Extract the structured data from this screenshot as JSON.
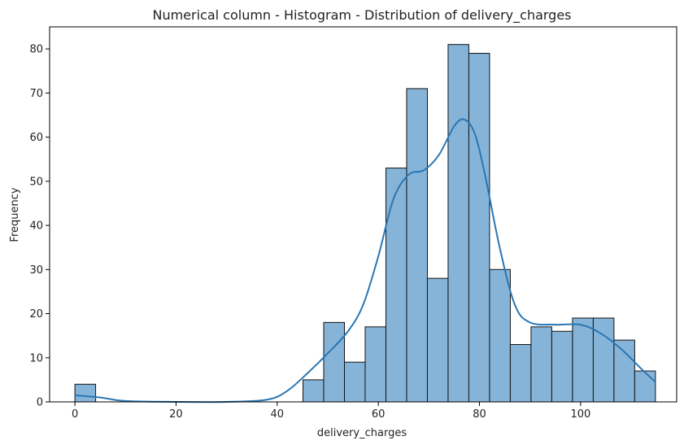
{
  "chart_data": {
    "type": "bar",
    "subtype": "histogram",
    "title": "Numerical column - Histogram - Distribution of delivery_charges",
    "xlabel": "delivery_charges",
    "ylabel": "Frequency",
    "xlim": [
      -5,
      119
    ],
    "ylim": [
      0,
      85
    ],
    "xticks": [
      0,
      20,
      40,
      60,
      80,
      100
    ],
    "yticks": [
      0,
      10,
      20,
      30,
      40,
      50,
      60,
      70,
      80
    ],
    "bin_width": 4.1,
    "bins": [
      {
        "start": 0.0,
        "end": 4.1,
        "count": 4
      },
      {
        "start": 45.1,
        "end": 49.2,
        "count": 5
      },
      {
        "start": 49.2,
        "end": 53.3,
        "count": 18
      },
      {
        "start": 53.3,
        "end": 57.4,
        "count": 9
      },
      {
        "start": 57.4,
        "end": 61.5,
        "count": 17
      },
      {
        "start": 61.5,
        "end": 65.6,
        "count": 53
      },
      {
        "start": 65.6,
        "end": 69.7,
        "count": 71
      },
      {
        "start": 69.7,
        "end": 73.8,
        "count": 28
      },
      {
        "start": 73.8,
        "end": 77.9,
        "count": 81
      },
      {
        "start": 77.9,
        "end": 82.0,
        "count": 79
      },
      {
        "start": 82.0,
        "end": 86.1,
        "count": 30
      },
      {
        "start": 86.1,
        "end": 90.2,
        "count": 13
      },
      {
        "start": 90.2,
        "end": 94.3,
        "count": 17
      },
      {
        "start": 94.3,
        "end": 98.4,
        "count": 16
      },
      {
        "start": 98.4,
        "end": 102.5,
        "count": 19
      },
      {
        "start": 102.5,
        "end": 106.6,
        "count": 19
      },
      {
        "start": 106.6,
        "end": 110.7,
        "count": 14
      },
      {
        "start": 110.7,
        "end": 114.8,
        "count": 7
      }
    ],
    "kde": {
      "x": [
        0,
        5,
        10,
        20,
        30,
        38,
        42,
        46,
        50,
        54,
        57,
        60,
        63,
        66,
        69,
        72,
        75,
        77,
        79,
        81,
        84,
        87,
        90,
        95,
        100,
        104,
        108,
        112,
        114.8
      ],
      "y": [
        1.5,
        1.0,
        0.2,
        0.0,
        0.0,
        0.5,
        2.5,
        6.5,
        11.0,
        16.0,
        22.0,
        33.0,
        46.0,
        51.5,
        52.5,
        56.0,
        62.5,
        64.0,
        61.0,
        52.0,
        35.0,
        22.0,
        18.0,
        17.5,
        17.5,
        15.5,
        12.0,
        7.5,
        4.5
      ]
    },
    "bar_fill": "#86b4d8",
    "bar_stroke": "#111111",
    "kde_color": "#2a76b3",
    "grid": false,
    "legend": "none"
  }
}
